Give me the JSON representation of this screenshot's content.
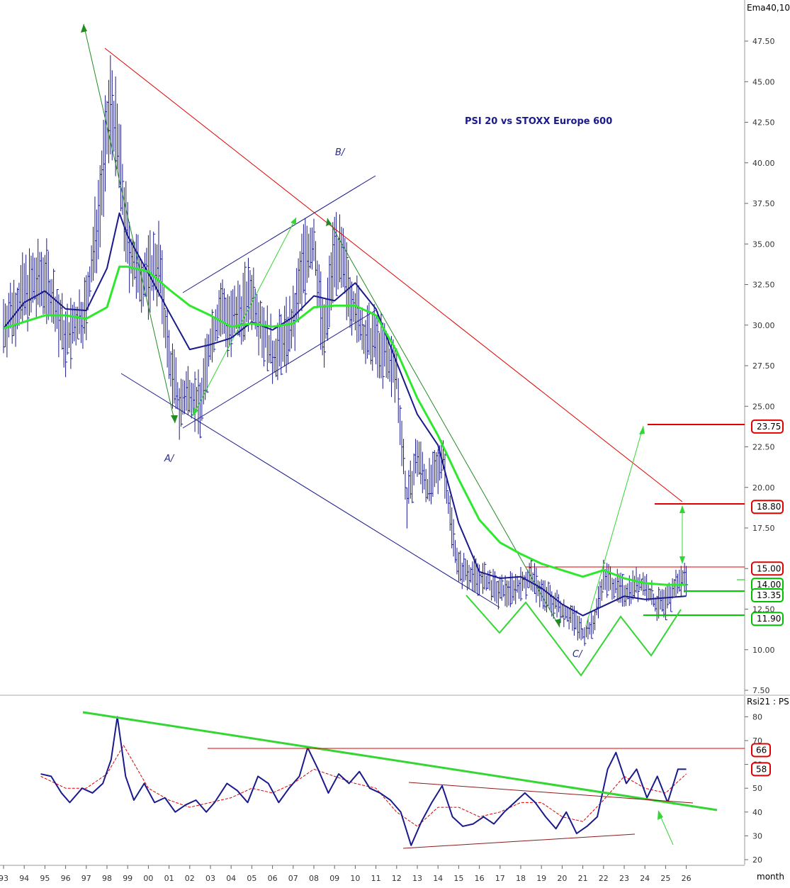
{
  "chart_data": [
    {
      "type": "line",
      "title": "PSI 20 vs STOXX Europe 600",
      "indicator_label": "Ema40,10",
      "xlabel": "month",
      "x_ticks": [
        "93",
        "94",
        "95",
        "96",
        "97",
        "98",
        "99",
        "00",
        "01",
        "02",
        "03",
        "04",
        "05",
        "06",
        "07",
        "08",
        "09",
        "10",
        "11",
        "12",
        "13",
        "14",
        "15",
        "16",
        "17",
        "18",
        "19",
        "20",
        "21",
        "22",
        "23",
        "24",
        "25",
        "26"
      ],
      "y_ticks": [
        "47.50",
        "45.00",
        "42.50",
        "40.00",
        "37.50",
        "35.00",
        "32.50",
        "30.00",
        "27.50",
        "25.00",
        "22.50",
        "20.00",
        "17.50",
        "15.00",
        "12.50",
        "10.00",
        "7.50"
      ],
      "ylim": [
        7.5,
        48.5
      ],
      "wave_labels": [
        "A/",
        "B/",
        "C/"
      ],
      "price_levels": [
        {
          "value": "23.75",
          "color": "#e00000"
        },
        {
          "value": "18.80",
          "color": "#e00000"
        },
        {
          "value": "15.00",
          "color": "#e00000"
        },
        {
          "value": "14.00",
          "color": "#00c000"
        },
        {
          "value": "13.35",
          "color": "#00c000"
        },
        {
          "value": "11.90",
          "color": "#00c000"
        }
      ],
      "series": [
        {
          "name": "",
          "color": "#1a1a8c",
          "x": [
            1993,
            1994,
            1995,
            1996,
            1997,
            1997.5,
            1998.2,
            1998.6,
            1999,
            1999.5,
            2000,
            2000.5,
            2001,
            2001.5,
            2002,
            2002.5,
            2003,
            2003.5,
            2004,
            2004.5,
            2005,
            2006,
            2006.5,
            2007,
            2007.5,
            2008,
            2008.5,
            2009,
            2009.5,
            2010,
            2010.5,
            2011,
            2011.5,
            2012,
            2012.5,
            2013,
            2013.5,
            2014,
            2014.2,
            2014.5,
            2015,
            2016,
            2017,
            2018,
            2018.5,
            2019,
            2020,
            2020.5,
            2021,
            2021.5,
            2022,
            2022.5,
            2023,
            2023.5,
            2024,
            2024.5,
            2025,
            2025.5,
            2026
          ],
          "values": [
            30,
            32,
            33,
            29,
            31,
            36,
            44,
            40,
            35,
            33,
            33,
            34,
            28,
            25,
            26,
            25,
            29,
            31,
            30,
            31,
            32,
            28,
            29,
            30,
            34,
            35,
            29,
            35,
            33,
            31,
            29,
            29,
            28,
            27,
            19,
            22,
            20,
            21,
            22.5,
            19,
            15,
            14.5,
            13.5,
            14,
            14.5,
            13.5,
            12.5,
            12,
            11,
            11.5,
            14.5,
            14,
            13.5,
            14,
            14,
            12.8,
            12.8,
            14,
            14.5
          ]
        },
        {
          "name": "",
          "color": "#1a1a8c",
          "x": [
            1993,
            1994,
            1995,
            1996,
            1997,
            1998,
            1998.6,
            1999,
            2000,
            2001,
            2002,
            2003,
            2004,
            2005,
            2006,
            2007,
            2008,
            2009,
            2010,
            2011,
            2012,
            2013,
            2014,
            2015,
            2016,
            2017,
            2018,
            2019,
            2020,
            2021,
            2022,
            2023,
            2024,
            2025,
            2026
          ],
          "values": [
            29.8,
            31.4,
            32.1,
            31,
            30.9,
            33.5,
            36.9,
            35.5,
            33.2,
            30.8,
            28.5,
            28.8,
            29.2,
            30.2,
            29.7,
            30.5,
            31.8,
            31.5,
            32.6,
            31,
            27.7,
            24.5,
            22.6,
            17.8,
            14.8,
            14.4,
            14.5,
            13.8,
            12.8,
            12.1,
            12.7,
            13.3,
            13.1,
            13.2,
            13.3
          ]
        },
        {
          "name": "",
          "color": "#2ee82e",
          "x": [
            1993,
            1994,
            1995,
            1996,
            1997,
            1998,
            1998.6,
            1999,
            2000,
            2001,
            2002,
            2003,
            2004,
            2005,
            2006,
            2007,
            2008,
            2009,
            2010,
            2011,
            2012,
            2013,
            2014,
            2015,
            2016,
            2017,
            2018,
            2019,
            2020,
            2021,
            2022,
            2023,
            2024,
            2025,
            2026
          ],
          "values": [
            29.8,
            30.2,
            30.6,
            30.6,
            30.4,
            31.1,
            33.6,
            33.6,
            33.3,
            32.2,
            31.2,
            30.6,
            29.9,
            30.1,
            29.9,
            30.1,
            31.1,
            31.2,
            31.2,
            30.6,
            28.4,
            25.5,
            23.2,
            20.5,
            18,
            16.6,
            15.9,
            15.3,
            14.9,
            14.5,
            14.9,
            14.4,
            14.1,
            14.0,
            14.0
          ]
        }
      ]
    },
    {
      "type": "line",
      "indicator_label": "Rsi21 : PS",
      "y_ticks": [
        "80",
        "70",
        "60",
        "50",
        "40",
        "30",
        "20"
      ],
      "ylim": [
        18,
        84
      ],
      "levels": [
        {
          "value": "66",
          "color": "#e00000"
        },
        {
          "value": "58",
          "color": "#e00000"
        }
      ],
      "series": [
        {
          "name": "",
          "color": "#1a1a8c",
          "x": [
            1994.8,
            1995.3,
            1995.8,
            1996.2,
            1996.8,
            1997.3,
            1997.8,
            1998.2,
            1998.5,
            1998.9,
            1999.3,
            1999.8,
            2000.3,
            2000.8,
            2001.3,
            2001.8,
            2002.3,
            2002.8,
            2003.2,
            2003.8,
            2004.3,
            2004.8,
            2005.3,
            2005.8,
            2006.3,
            2006.8,
            2007.3,
            2007.7,
            2008.2,
            2008.7,
            2009.2,
            2009.7,
            2010.2,
            2010.7,
            2011.2,
            2011.7,
            2012.2,
            2012.7,
            2013.2,
            2013.7,
            2014.2,
            2014.7,
            2015.2,
            2015.7,
            2016.2,
            2016.7,
            2017.2,
            2017.7,
            2018.2,
            2018.7,
            2019.2,
            2019.7,
            2020.2,
            2020.7,
            2021.2,
            2021.7,
            2022.2,
            2022.6,
            2023.1,
            2023.6,
            2024.1,
            2024.6,
            2025.1,
            2025.6,
            2026
          ],
          "values": [
            56,
            55,
            48,
            44,
            50,
            48,
            52,
            62,
            80,
            55,
            45,
            52,
            44,
            46,
            40,
            43,
            45,
            40,
            44,
            52,
            49,
            44,
            55,
            52,
            44,
            50,
            55,
            67,
            58,
            48,
            56,
            52,
            57,
            50,
            48,
            45,
            40,
            26,
            36,
            44,
            51,
            38,
            34,
            35,
            38,
            35,
            40,
            44,
            48,
            44,
            38,
            33,
            40,
            31,
            34,
            38,
            58,
            65,
            52,
            58,
            46,
            55,
            44,
            58,
            58
          ]
        },
        {
          "name": "",
          "color": "#e00000",
          "x": [
            1994.8,
            1996,
            1997,
            1998,
            1998.8,
            2000,
            2001,
            2002,
            2003,
            2004,
            2005,
            2006,
            2007,
            2008,
            2009,
            2010,
            2011,
            2012,
            2013,
            2014,
            2015,
            2016,
            2017,
            2018,
            2019,
            2020,
            2021,
            2022,
            2023,
            2024,
            2025,
            2026
          ],
          "values": [
            55,
            50,
            50,
            56,
            68,
            50,
            45,
            42,
            44,
            46,
            50,
            48,
            52,
            58,
            55,
            52,
            50,
            40,
            34,
            42,
            42,
            38,
            40,
            44,
            44,
            38,
            36,
            45,
            55,
            50,
            48,
            56
          ]
        }
      ]
    }
  ]
}
